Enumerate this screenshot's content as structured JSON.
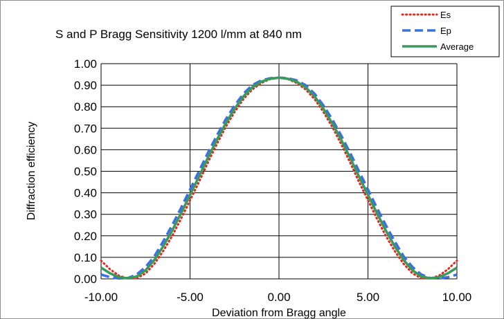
{
  "chart_data": {
    "type": "line",
    "title": "S and P Bragg Sensitivity  1200 l/mm at 840 nm",
    "xlabel": "Deviation from Bragg angle",
    "ylabel": "Diffraction efficiency",
    "xlim": [
      -10,
      10
    ],
    "ylim": [
      0,
      1
    ],
    "x_ticks": [
      "-10.00",
      "-5.00",
      "0.00",
      "5.00",
      "10.00"
    ],
    "x_tick_values": [
      -10,
      -5,
      0,
      5,
      10
    ],
    "y_ticks": [
      "0.00",
      "0.10",
      "0.20",
      "0.30",
      "0.40",
      "0.50",
      "0.60",
      "0.70",
      "0.80",
      "0.90",
      "1.00"
    ],
    "y_tick_values": [
      0,
      0.1,
      0.2,
      0.3,
      0.4,
      0.5,
      0.6,
      0.7,
      0.8,
      0.9,
      1.0
    ],
    "grid": true,
    "legend_position": "top-right",
    "x": [
      -10,
      -9.5,
      -9,
      -8.5,
      -8,
      -7.5,
      -7,
      -6.5,
      -6,
      -5.5,
      -5,
      -4.5,
      -4,
      -3.5,
      -3,
      -2.5,
      -2,
      -1.5,
      -1,
      -0.5,
      0,
      0.5,
      1,
      1.5,
      2,
      2.5,
      3,
      3.5,
      4,
      4.5,
      5,
      5.5,
      6,
      6.5,
      7,
      7.5,
      8,
      8.5,
      9,
      9.5,
      10
    ],
    "series": [
      {
        "name": "Es",
        "color": "#e8261f",
        "dash": "dotted",
        "values": [
          0.085,
          0.045,
          0.015,
          0.002,
          0.003,
          0.025,
          0.07,
          0.13,
          0.2,
          0.28,
          0.365,
          0.45,
          0.54,
          0.625,
          0.705,
          0.775,
          0.835,
          0.88,
          0.91,
          0.928,
          0.935,
          0.928,
          0.91,
          0.88,
          0.835,
          0.775,
          0.705,
          0.625,
          0.54,
          0.45,
          0.365,
          0.28,
          0.2,
          0.13,
          0.07,
          0.025,
          0.003,
          0.002,
          0.015,
          0.045,
          0.085
        ]
      },
      {
        "name": "Ep",
        "color": "#3b6fe6",
        "dash": "dashed",
        "values": [
          0.02,
          0.008,
          0.002,
          0.004,
          0.02,
          0.055,
          0.105,
          0.175,
          0.25,
          0.33,
          0.415,
          0.5,
          0.585,
          0.665,
          0.74,
          0.805,
          0.86,
          0.9,
          0.922,
          0.932,
          0.935,
          0.932,
          0.922,
          0.9,
          0.86,
          0.805,
          0.74,
          0.665,
          0.585,
          0.5,
          0.415,
          0.33,
          0.25,
          0.175,
          0.105,
          0.055,
          0.02,
          0.004,
          0.002,
          0.008,
          0.02
        ]
      },
      {
        "name": "Average",
        "color": "#3a9a5c",
        "dash": "solid",
        "values": [
          0.052,
          0.026,
          0.008,
          0.003,
          0.011,
          0.04,
          0.088,
          0.152,
          0.225,
          0.305,
          0.39,
          0.475,
          0.562,
          0.645,
          0.722,
          0.79,
          0.848,
          0.89,
          0.916,
          0.93,
          0.935,
          0.93,
          0.916,
          0.89,
          0.848,
          0.79,
          0.722,
          0.645,
          0.562,
          0.475,
          0.39,
          0.305,
          0.225,
          0.152,
          0.088,
          0.04,
          0.011,
          0.003,
          0.008,
          0.026,
          0.052
        ]
      }
    ]
  }
}
